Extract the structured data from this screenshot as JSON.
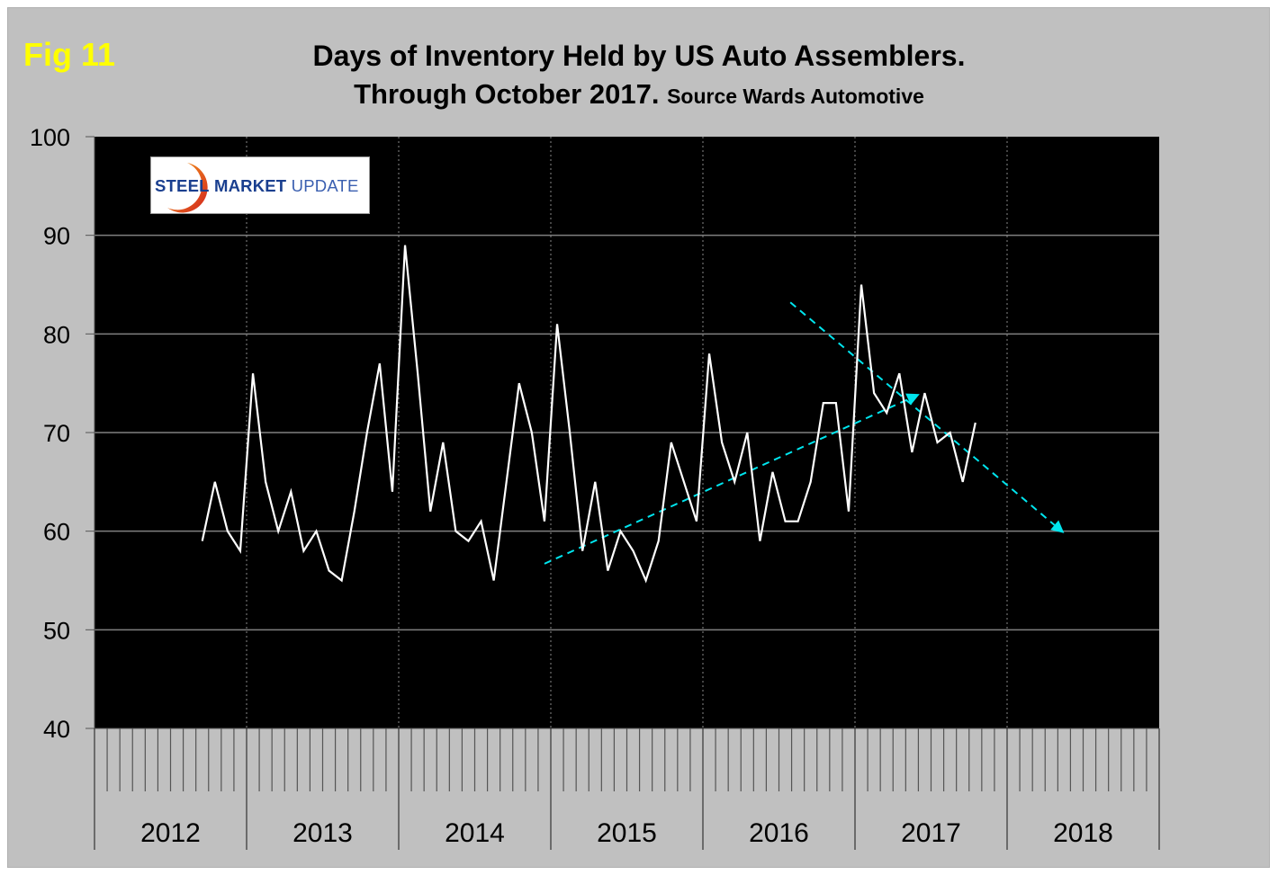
{
  "header": {
    "fig_label": "Fig 11",
    "title_line1": "Days of Inventory Held by US Auto Assemblers.",
    "title_line2": "Through October 2017.",
    "source": "Source Wards Automotive"
  },
  "logo": {
    "word1": "STEEL",
    "word2": "MARKET",
    "word3": "UPDATE"
  },
  "colors": {
    "frame_bg": "#c0c0c0",
    "plot_bg": "#000000",
    "series": "#ffffff",
    "trend": "#00e5ee",
    "fig_label": "#ffff00",
    "gridline": "#808080"
  },
  "chart_data": {
    "type": "line",
    "title": "Days of Inventory Held by US Auto Assemblers. Through October 2017.",
    "subtitle": "Source Wards Automotive",
    "xlabel": "",
    "ylabel": "",
    "ylim": [
      40,
      100
    ],
    "yticks": [
      "100",
      "90",
      "80",
      "70",
      "60",
      "50",
      "40"
    ],
    "ytick_values": [
      100,
      90,
      80,
      70,
      60,
      50,
      40
    ],
    "x_categories_years": [
      "2012",
      "2013",
      "2014",
      "2015",
      "2016",
      "2017",
      "2018"
    ],
    "months_per_year": 12,
    "grid": "horizontal major gridlines; dotted vertical year separators",
    "legend": "none",
    "series": [
      {
        "name": "Days of inventory",
        "start": "2012-09",
        "end": "2017-10",
        "x": [
          "2012-09",
          "2012-10",
          "2012-11",
          "2012-12",
          "2013-01",
          "2013-02",
          "2013-03",
          "2013-04",
          "2013-05",
          "2013-06",
          "2013-07",
          "2013-08",
          "2013-09",
          "2013-10",
          "2013-11",
          "2013-12",
          "2014-01",
          "2014-02",
          "2014-03",
          "2014-04",
          "2014-05",
          "2014-06",
          "2014-07",
          "2014-08",
          "2014-09",
          "2014-10",
          "2014-11",
          "2014-12",
          "2015-01",
          "2015-02",
          "2015-03",
          "2015-04",
          "2015-05",
          "2015-06",
          "2015-07",
          "2015-08",
          "2015-09",
          "2015-10",
          "2015-11",
          "2015-12",
          "2016-01",
          "2016-02",
          "2016-03",
          "2016-04",
          "2016-05",
          "2016-06",
          "2016-07",
          "2016-08",
          "2016-09",
          "2016-10",
          "2016-11",
          "2016-12",
          "2017-01",
          "2017-02",
          "2017-03",
          "2017-04",
          "2017-05",
          "2017-06",
          "2017-07",
          "2017-08",
          "2017-09",
          "2017-10"
        ],
        "values": [
          59,
          65,
          60,
          58,
          76,
          65,
          60,
          64,
          58,
          60,
          56,
          55,
          62,
          70,
          77,
          64,
          89,
          76,
          62,
          69,
          60,
          59,
          61,
          55,
          65,
          75,
          70,
          61,
          81,
          70,
          58,
          65,
          56,
          60,
          58,
          55,
          59,
          69,
          65,
          61,
          78,
          69,
          65,
          70,
          59,
          66,
          61,
          61,
          65,
          73,
          73,
          62,
          85,
          74,
          72,
          76,
          68,
          74,
          69,
          70,
          65,
          71
        ]
      }
    ],
    "annotations": [
      {
        "type": "trend-arrow",
        "direction": "up",
        "from": {
          "month_index": 35.0,
          "value": 56.7
        },
        "to": {
          "month_index": 64.6,
          "value": 73.9
        },
        "style": "dashed"
      },
      {
        "type": "trend-arrow",
        "direction": "down",
        "from": {
          "month_index": 54.4,
          "value": 83.2
        },
        "to": {
          "month_index": 76.0,
          "value": 59.8
        },
        "style": "dashed"
      }
    ],
    "x_index_note": "month_index 0 = January 2012"
  }
}
